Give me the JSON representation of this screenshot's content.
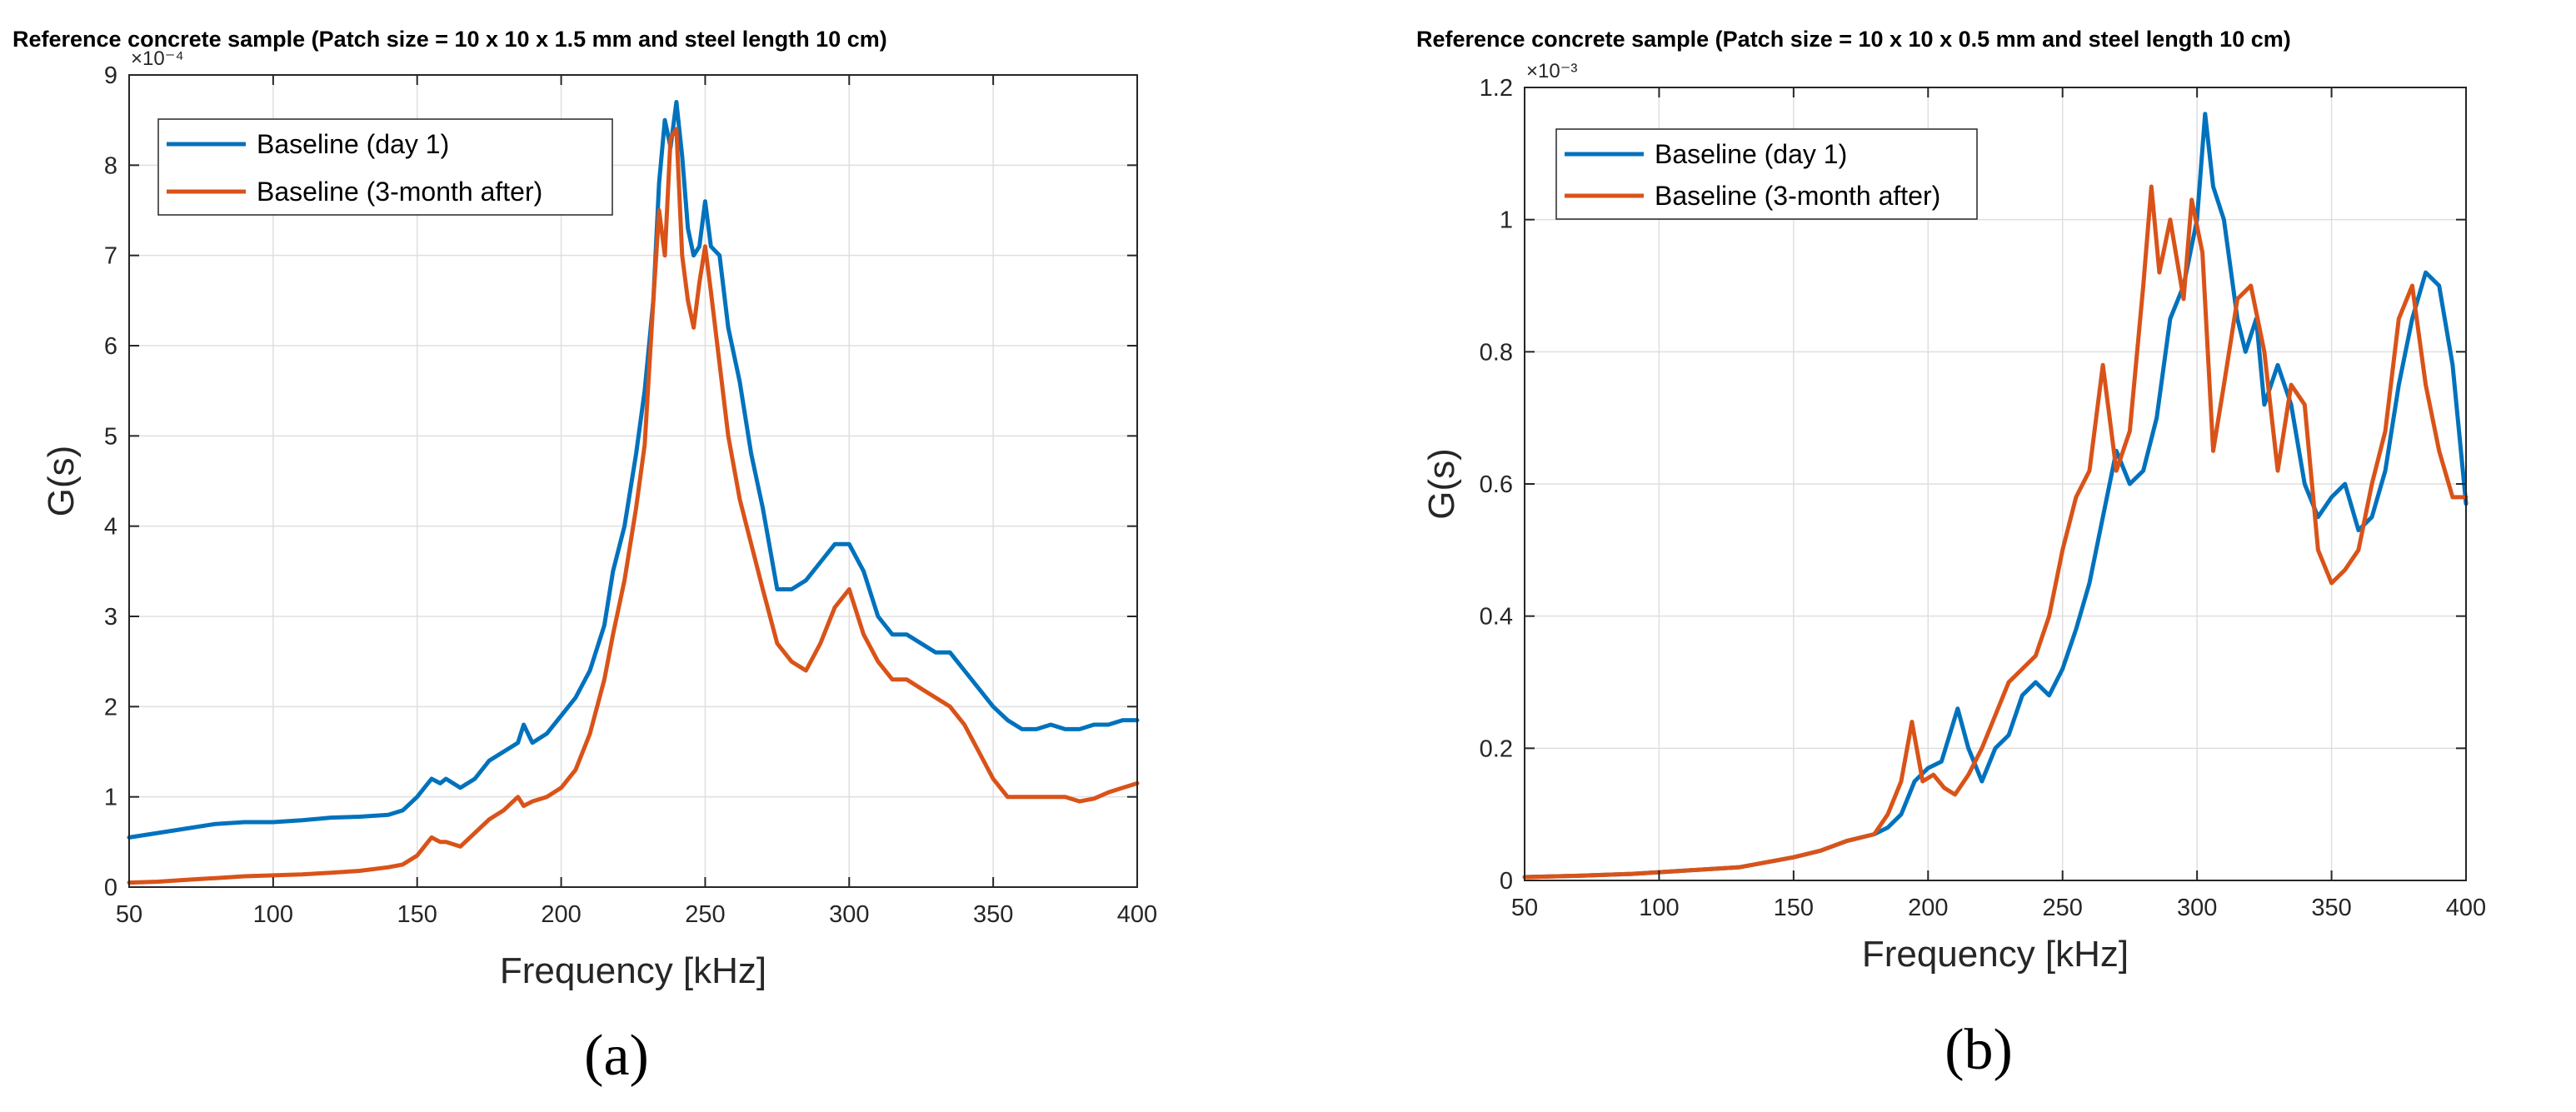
{
  "chart_data": [
    {
      "type": "line",
      "panel_label": "(a)",
      "title": "Reference concrete sample (Patch size = 10 x 10 x 1.5 mm and steel length 10 cm)",
      "xlabel": "Frequency [kHz]",
      "ylabel": "G(s)",
      "y_exponent": "×10⁻⁴",
      "xlim": [
        50,
        400
      ],
      "ylim": [
        0,
        9
      ],
      "xticks": [
        50,
        100,
        150,
        200,
        250,
        300,
        350,
        400
      ],
      "yticks": [
        0,
        1,
        2,
        3,
        4,
        5,
        6,
        7,
        8,
        9
      ],
      "grid": true,
      "legend_position": "top-left",
      "series": [
        {
          "name": "Baseline (day 1)",
          "color": "#0072BD",
          "x": [
            50,
            60,
            70,
            80,
            90,
            100,
            110,
            120,
            130,
            140,
            145,
            150,
            155,
            158,
            160,
            165,
            170,
            175,
            180,
            185,
            187,
            190,
            195,
            200,
            205,
            210,
            215,
            218,
            222,
            226,
            229,
            232,
            234,
            236,
            238,
            240,
            242,
            244,
            246,
            248,
            250,
            252,
            255,
            258,
            262,
            266,
            270,
            275,
            280,
            285,
            290,
            295,
            300,
            305,
            310,
            315,
            320,
            325,
            330,
            335,
            340,
            345,
            350,
            355,
            360,
            365,
            370,
            375,
            380,
            385,
            390,
            395,
            400
          ],
          "values": [
            0.55,
            0.6,
            0.65,
            0.7,
            0.72,
            0.72,
            0.74,
            0.77,
            0.78,
            0.8,
            0.85,
            1.0,
            1.2,
            1.15,
            1.2,
            1.1,
            1.2,
            1.4,
            1.5,
            1.6,
            1.8,
            1.6,
            1.7,
            1.9,
            2.1,
            2.4,
            2.9,
            3.5,
            4.0,
            4.8,
            5.5,
            6.5,
            7.8,
            8.5,
            8.2,
            8.7,
            8.1,
            7.3,
            7.0,
            7.1,
            7.6,
            7.1,
            7.0,
            6.2,
            5.6,
            4.8,
            4.2,
            3.3,
            3.3,
            3.4,
            3.6,
            3.8,
            3.8,
            3.5,
            3.0,
            2.8,
            2.8,
            2.7,
            2.6,
            2.6,
            2.4,
            2.2,
            2.0,
            1.85,
            1.75,
            1.75,
            1.8,
            1.75,
            1.75,
            1.8,
            1.8,
            1.85,
            1.85
          ]
        },
        {
          "name": "Baseline (3-month after)",
          "color": "#D95319",
          "x": [
            50,
            60,
            70,
            80,
            90,
            100,
            110,
            120,
            130,
            140,
            145,
            150,
            155,
            158,
            160,
            165,
            170,
            175,
            180,
            185,
            187,
            190,
            195,
            200,
            205,
            210,
            215,
            218,
            222,
            226,
            229,
            232,
            234,
            236,
            238,
            240,
            242,
            244,
            246,
            248,
            250,
            252,
            255,
            258,
            262,
            266,
            270,
            275,
            280,
            285,
            290,
            295,
            300,
            305,
            310,
            315,
            320,
            325,
            330,
            335,
            340,
            345,
            350,
            355,
            360,
            365,
            370,
            375,
            380,
            385,
            390,
            395,
            400
          ],
          "values": [
            0.05,
            0.06,
            0.08,
            0.1,
            0.12,
            0.13,
            0.14,
            0.16,
            0.18,
            0.22,
            0.25,
            0.35,
            0.55,
            0.5,
            0.5,
            0.45,
            0.6,
            0.75,
            0.85,
            1.0,
            0.9,
            0.95,
            1.0,
            1.1,
            1.3,
            1.7,
            2.3,
            2.8,
            3.4,
            4.2,
            4.9,
            6.5,
            7.5,
            7.0,
            8.3,
            8.4,
            7.0,
            6.5,
            6.2,
            6.7,
            7.1,
            6.6,
            5.8,
            5.0,
            4.3,
            3.8,
            3.3,
            2.7,
            2.5,
            2.4,
            2.7,
            3.1,
            3.3,
            2.8,
            2.5,
            2.3,
            2.3,
            2.2,
            2.1,
            2.0,
            1.8,
            1.5,
            1.2,
            1.0,
            1.0,
            1.0,
            1.0,
            1.0,
            0.95,
            0.98,
            1.05,
            1.1,
            1.15
          ]
        }
      ]
    },
    {
      "type": "line",
      "panel_label": "(b)",
      "title": "Reference concrete sample (Patch size = 10 x 10 x 0.5 mm and steel length 10 cm)",
      "xlabel": "Frequency [kHz]",
      "ylabel": "G(s)",
      "y_exponent": "×10⁻³",
      "xlim": [
        50,
        400
      ],
      "ylim": [
        0,
        1.2
      ],
      "xticks": [
        50,
        100,
        150,
        200,
        250,
        300,
        350,
        400
      ],
      "yticks": [
        0,
        0.2,
        0.4,
        0.6,
        0.8,
        1,
        1.2
      ],
      "ytick_labels": [
        "0",
        "0.2",
        "0.4",
        "0.6",
        "0.8",
        "1",
        "1.2"
      ],
      "grid": true,
      "legend_position": "top-left",
      "series": [
        {
          "name": "Baseline (day 1)",
          "color": "#0072BD",
          "x": [
            50,
            70,
            90,
            110,
            130,
            150,
            160,
            170,
            180,
            185,
            190,
            195,
            200,
            205,
            208,
            211,
            215,
            220,
            225,
            230,
            235,
            240,
            245,
            250,
            255,
            260,
            265,
            270,
            275,
            280,
            285,
            290,
            295,
            300,
            303,
            306,
            310,
            315,
            318,
            322,
            325,
            330,
            335,
            340,
            345,
            350,
            355,
            360,
            365,
            370,
            375,
            380,
            385,
            390,
            395,
            400
          ],
          "values": [
            0.005,
            0.007,
            0.01,
            0.015,
            0.02,
            0.035,
            0.045,
            0.06,
            0.07,
            0.08,
            0.1,
            0.15,
            0.17,
            0.18,
            0.22,
            0.26,
            0.2,
            0.15,
            0.2,
            0.22,
            0.28,
            0.3,
            0.28,
            0.32,
            0.38,
            0.45,
            0.55,
            0.65,
            0.6,
            0.62,
            0.7,
            0.85,
            0.9,
            1.0,
            1.16,
            1.05,
            1.0,
            0.85,
            0.8,
            0.85,
            0.72,
            0.78,
            0.72,
            0.6,
            0.55,
            0.58,
            0.6,
            0.53,
            0.55,
            0.62,
            0.75,
            0.85,
            0.92,
            0.9,
            0.78,
            0.57
          ]
        },
        {
          "name": "Baseline (3-month after)",
          "color": "#D95319",
          "x": [
            50,
            70,
            90,
            110,
            130,
            150,
            160,
            170,
            180,
            185,
            190,
            194,
            198,
            202,
            206,
            210,
            215,
            220,
            225,
            230,
            235,
            240,
            245,
            250,
            255,
            260,
            265,
            270,
            275,
            280,
            283,
            286,
            290,
            295,
            298,
            302,
            306,
            310,
            315,
            320,
            325,
            330,
            335,
            340,
            345,
            350,
            355,
            360,
            365,
            370,
            375,
            380,
            385,
            390,
            395,
            400
          ],
          "values": [
            0.005,
            0.007,
            0.01,
            0.015,
            0.02,
            0.035,
            0.045,
            0.06,
            0.07,
            0.1,
            0.15,
            0.24,
            0.15,
            0.16,
            0.14,
            0.13,
            0.16,
            0.2,
            0.25,
            0.3,
            0.32,
            0.34,
            0.4,
            0.5,
            0.58,
            0.62,
            0.78,
            0.62,
            0.68,
            0.9,
            1.05,
            0.92,
            1.0,
            0.88,
            1.03,
            0.95,
            0.65,
            0.75,
            0.88,
            0.9,
            0.8,
            0.62,
            0.75,
            0.72,
            0.5,
            0.45,
            0.47,
            0.5,
            0.6,
            0.68,
            0.85,
            0.9,
            0.75,
            0.65,
            0.58,
            0.58
          ]
        }
      ]
    }
  ]
}
